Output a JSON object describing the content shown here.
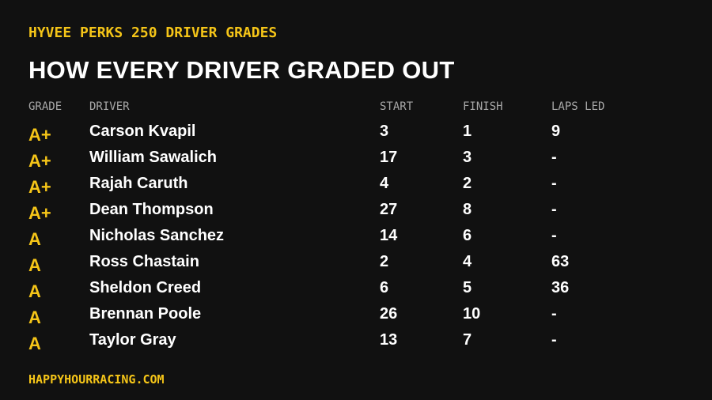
{
  "header": {
    "subtitle": "HYVEE PERKS 250 DRIVER GRADES",
    "title": "HOW EVERY DRIVER GRADED OUT"
  },
  "table": {
    "columns": [
      "GRADE",
      "DRIVER",
      "START",
      "FINISH",
      "LAPS LED"
    ],
    "rows": [
      [
        "A+",
        "Carson Kvapil",
        3,
        1,
        9
      ],
      [
        "A+",
        "William Sawalich",
        17,
        3,
        "-"
      ],
      [
        "A+",
        "Rajah Caruth",
        4,
        2,
        "-"
      ],
      [
        "A+",
        "Dean Thompson",
        27,
        8,
        "-"
      ],
      [
        "A",
        "Nicholas Sanchez",
        14,
        6,
        "-"
      ],
      [
        "A",
        "Ross Chastain",
        2,
        4,
        63
      ],
      [
        "A",
        "Sheldon Creed",
        6,
        5,
        36
      ],
      [
        "A",
        "Brennan Poole",
        26,
        10,
        "-"
      ],
      [
        "A",
        "Taylor Gray",
        13,
        7,
        "-"
      ]
    ]
  },
  "footer": {
    "site": "HAPPYHOURRACING.COM"
  }
}
